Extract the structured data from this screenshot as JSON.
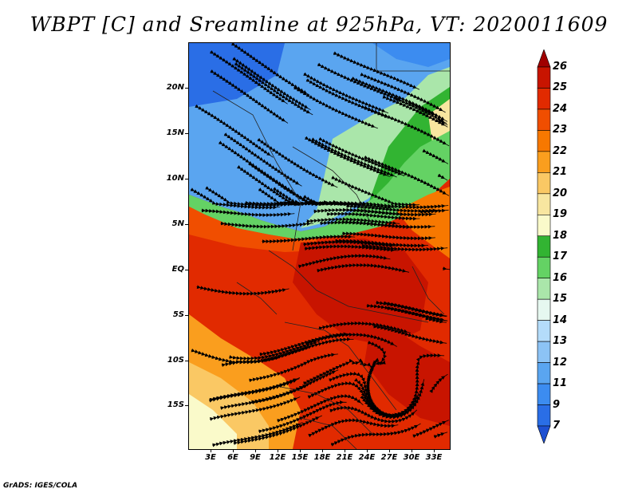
{
  "title": "WBPT [C] and Sreamline at 925hPa, VT: 2020011609",
  "credit": "GrADS: IGES/COLA",
  "y_axis": [
    "20N",
    "15N",
    "10N",
    "5N",
    "EQ",
    "5S",
    "10S",
    "15S"
  ],
  "x_axis": [
    "3E",
    "6E",
    "9E",
    "12E",
    "15E",
    "18E",
    "21E",
    "24E",
    "27E",
    "30E",
    "33E"
  ],
  "colorbar": {
    "labels": [
      "26",
      "25",
      "24",
      "23",
      "22",
      "21",
      "20",
      "19",
      "18",
      "17",
      "16",
      "15",
      "14",
      "13",
      "12",
      "11",
      "9",
      "7"
    ],
    "colors": [
      "#a00000",
      "#c81400",
      "#e12a00",
      "#f04e00",
      "#f77800",
      "#fa9e1e",
      "#fac864",
      "#f8e6a0",
      "#fafaca",
      "#32b432",
      "#64d264",
      "#aae6aa",
      "#e6f8f0",
      "#b4dcfa",
      "#8cc3f5",
      "#5aa5f0",
      "#3c8cf0",
      "#2a6ee6",
      "#1e50d2"
    ]
  },
  "icons": {
    "colorbar_top": "triangle-up-icon",
    "colorbar_bottom": "triangle-down-icon"
  }
}
